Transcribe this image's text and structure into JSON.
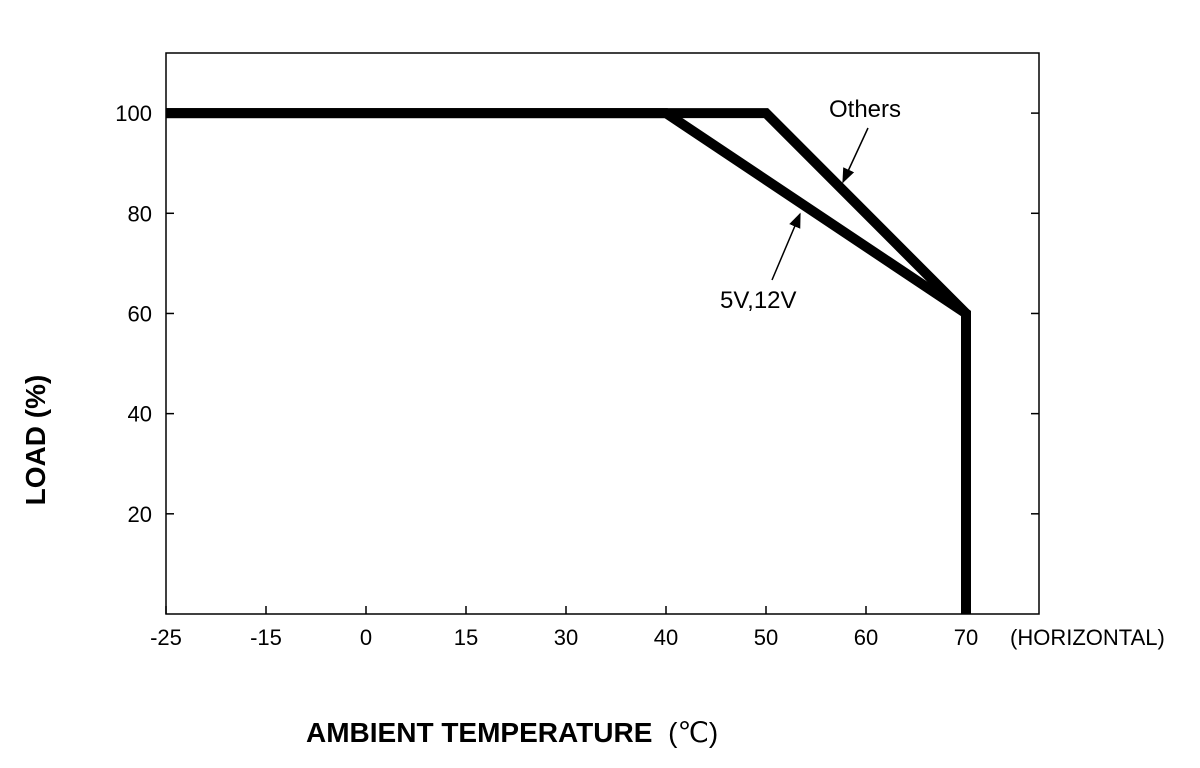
{
  "chart_data": {
    "type": "line",
    "xlabel": "AMBIENT TEMPERATURE",
    "xlabel_unit": "(℃)",
    "ylabel": "LOAD (%)",
    "x_ticks": [
      "-25",
      "-15",
      "0",
      "15",
      "30",
      "40",
      "50",
      "60",
      "70"
    ],
    "x_suffix": "(HORIZONTAL)",
    "y_ticks": [
      20,
      40,
      60,
      80,
      100
    ],
    "ylim": [
      0,
      112
    ],
    "grid": false,
    "series": [
      {
        "name": "Others",
        "points": [
          [
            -25,
            100
          ],
          [
            50,
            100
          ],
          [
            70,
            60
          ],
          [
            70,
            0
          ]
        ]
      },
      {
        "name": "5V,12V",
        "points": [
          [
            -25,
            100
          ],
          [
            40,
            100
          ],
          [
            70,
            60
          ],
          [
            70,
            0
          ]
        ]
      }
    ],
    "annotations": [
      {
        "text": "Others",
        "series": "Others"
      },
      {
        "text": "5V,12V",
        "series": "5V,12V"
      }
    ]
  }
}
